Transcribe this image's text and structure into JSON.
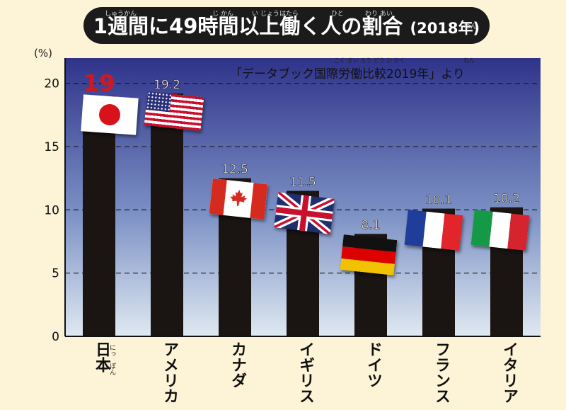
{
  "title": {
    "prefix": "1週間に49時間以上働く人の割合",
    "year": "(2018年)",
    "ruby": {
      "shuukan": "しゅうかん",
      "jikan": "じ かん",
      "ijou": "い じょう",
      "hataraku": "はたら",
      "hito": "ひと",
      "wariai": "わり あい",
      "nen": "ねん"
    }
  },
  "source": {
    "text": "「データブック国際労働比較2019年」より",
    "ruby_kokusai": "こく さい ろう どう ひ かく",
    "ruby_nen": "ねん"
  },
  "colors": {
    "background": "#fdf4d8",
    "title_bg": "#1b1b1b",
    "plot_top": "#2f338a",
    "plot_bottom": "#d7e3ef",
    "bar": "#1a1412",
    "highlight": "#d6161b"
  },
  "chart_data": {
    "type": "bar",
    "title": "1週間に49時間以上働く人の割合 (2018年)",
    "xlabel": "",
    "ylabel": "(%)",
    "ylim": [
      0,
      22
    ],
    "yticks": [
      0,
      5,
      10,
      15,
      20
    ],
    "grid": true,
    "categories": [
      "日本",
      "アメリカ",
      "カナダ",
      "イギリス",
      "ドイツ",
      "フランス",
      "イタリア"
    ],
    "values": [
      19,
      19.2,
      12.5,
      11.5,
      8.1,
      10.1,
      10.2
    ],
    "value_labels": [
      "19",
      "19.2",
      "12.5",
      "11.5",
      "8.1",
      "10.1",
      "10.2"
    ],
    "highlight_index": 0,
    "flags": [
      "japan-flag",
      "usa-flag",
      "canada-flag",
      "uk-flag",
      "germany-flag",
      "france-flag",
      "italy-flag"
    ],
    "japan_ruby": [
      "にっ",
      "ぽん"
    ]
  }
}
